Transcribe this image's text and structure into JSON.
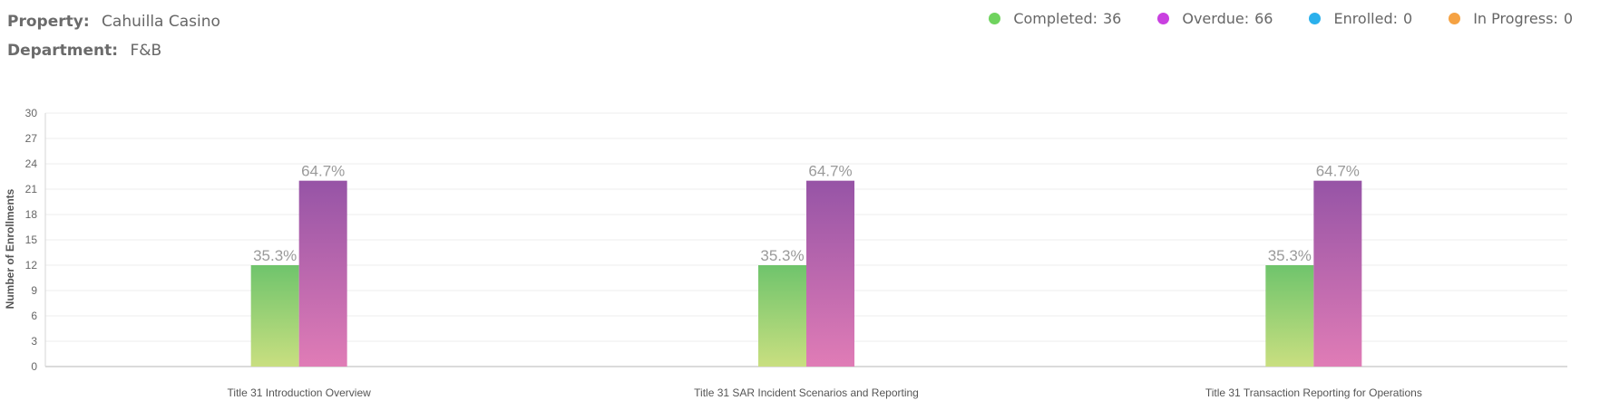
{
  "header": {
    "property_label": "Property:",
    "property_value": "Cahuilla Casino",
    "department_label": "Department:",
    "department_value": "F&B"
  },
  "legend": [
    {
      "label": "Completed:",
      "value": "36",
      "color": "#6fd35e"
    },
    {
      "label": "Overdue:",
      "value": "66",
      "color": "#c940e0"
    },
    {
      "label": "Enrolled:",
      "value": "0",
      "color": "#2ab0ec"
    },
    {
      "label": "In Progress:",
      "value": "0",
      "color": "#f5a243"
    }
  ],
  "chart_data": {
    "type": "bar",
    "ylabel": "Number of Enrollments",
    "xlabel": "",
    "ylim": [
      0,
      30
    ],
    "yticks": [
      0,
      3,
      6,
      9,
      12,
      15,
      18,
      21,
      24,
      27,
      30
    ],
    "grid": true,
    "categories": [
      "Title 31 Introduction Overview",
      "Title 31 SAR Incident Scenarios and Reporting",
      "Title 31 Transaction Reporting for Operations"
    ],
    "series": [
      {
        "name": "Completed",
        "values": [
          12,
          12,
          12
        ],
        "labels": [
          "35.3%",
          "35.3%",
          "35.3%"
        ],
        "color_top": "#6fc46c",
        "color_bottom": "#c9df80"
      },
      {
        "name": "Overdue",
        "values": [
          22,
          22,
          22
        ],
        "labels": [
          "64.7%",
          "64.7%",
          "64.7%"
        ],
        "color_top": "#9654a6",
        "color_bottom": "#e07cb6"
      }
    ]
  }
}
